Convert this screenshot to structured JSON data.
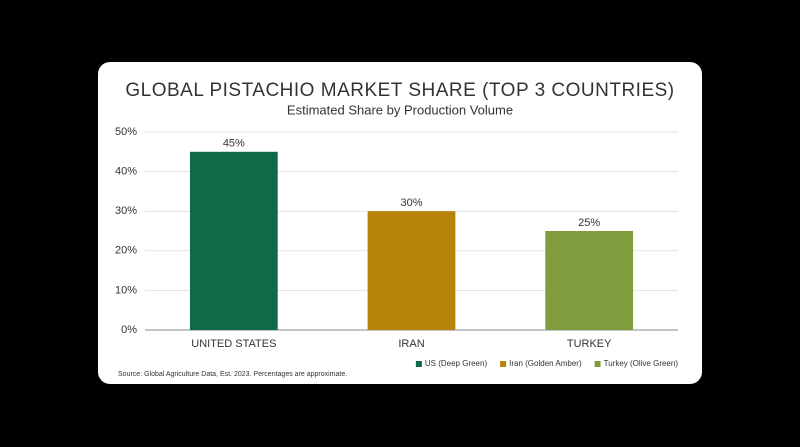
{
  "chart_data": {
    "type": "bar",
    "title": "GLOBAL PISTACHIO MARKET SHARE (TOP 3 COUNTRIES)",
    "subtitle": "Estimated Share by Production Volume",
    "categories": [
      "UNITED STATES",
      "IRAN",
      "TURKEY"
    ],
    "values": [
      45,
      30,
      25
    ],
    "value_labels": [
      "45%",
      "30%",
      "25%"
    ],
    "colors": [
      "#0f6b46",
      "#b7830b",
      "#7f9c3f"
    ],
    "legend": [
      "US (Deep Green)",
      "Iran (Golden Amber)",
      "Turkey (Olive Green)"
    ],
    "ylim": [
      0,
      50
    ],
    "yticks": [
      {
        "value": 0,
        "label": "0%"
      },
      {
        "value": 10,
        "label": "10%"
      },
      {
        "value": 20,
        "label": "20%"
      },
      {
        "value": 30,
        "label": "30%"
      },
      {
        "value": 40,
        "label": "40%"
      },
      {
        "value": 50,
        "label": "50%"
      }
    ],
    "grid": true,
    "legend_position": "bottom-right",
    "source": "Source: Global Agriculture Data, Est. 2023. Percentages are approximate."
  }
}
